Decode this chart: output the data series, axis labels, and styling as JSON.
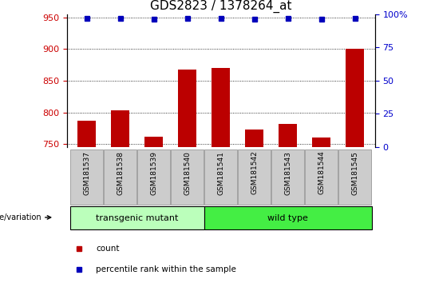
{
  "title": "GDS2823 / 1378264_at",
  "samples": [
    "GSM181537",
    "GSM181538",
    "GSM181539",
    "GSM181540",
    "GSM181541",
    "GSM181542",
    "GSM181543",
    "GSM181544",
    "GSM181545"
  ],
  "counts": [
    787,
    803,
    762,
    868,
    870,
    773,
    782,
    760,
    900
  ],
  "percentile_ranks": [
    97,
    97,
    96,
    97,
    97,
    96,
    97,
    96,
    97
  ],
  "ylim_left": [
    745,
    955
  ],
  "ylim_right": [
    0,
    100
  ],
  "yticks_left": [
    750,
    800,
    850,
    900,
    950
  ],
  "yticks_right": [
    0,
    25,
    50,
    75,
    100
  ],
  "bar_color": "#bb0000",
  "dot_color": "#0000bb",
  "groups": [
    {
      "label": "transgenic mutant",
      "start": 0,
      "end": 4,
      "color": "#bbffbb"
    },
    {
      "label": "wild type",
      "start": 4,
      "end": 9,
      "color": "#44ee44"
    }
  ],
  "group_label": "genotype/variation",
  "legend_items": [
    {
      "label": "count",
      "color": "#bb0000"
    },
    {
      "label": "percentile rank within the sample",
      "color": "#0000bb"
    }
  ],
  "tick_label_bg": "#cccccc",
  "grid_color": "black",
  "title_fontsize": 11,
  "axis_label_color_left": "#cc0000",
  "axis_label_color_right": "#0000cc",
  "right_ytick_labels": [
    "0",
    "25",
    "50",
    "75",
    "100%"
  ]
}
